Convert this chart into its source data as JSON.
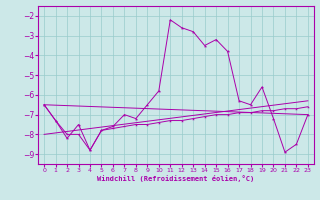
{
  "xlabel": "Windchill (Refroidissement éolien,°C)",
  "bg_color": "#cce8e8",
  "grid_color": "#99cccc",
  "line_color": "#aa00aa",
  "xlim": [
    -0.5,
    23.5
  ],
  "ylim": [
    -9.5,
    -1.5
  ],
  "yticks": [
    -9,
    -8,
    -7,
    -6,
    -5,
    -4,
    -3,
    -2
  ],
  "xticks": [
    0,
    1,
    2,
    3,
    4,
    5,
    6,
    7,
    8,
    9,
    10,
    11,
    12,
    13,
    14,
    15,
    16,
    17,
    18,
    19,
    20,
    21,
    22,
    23
  ],
  "series": [
    {
      "x": [
        0,
        1,
        2,
        3,
        4,
        5,
        6,
        7,
        8,
        9,
        10,
        11,
        12,
        13,
        14,
        15,
        16,
        17,
        18,
        19,
        20,
        21,
        22,
        23
      ],
      "y": [
        -6.5,
        -7.3,
        -8.2,
        -7.5,
        -8.8,
        -7.8,
        -7.6,
        -7.0,
        -7.2,
        -6.5,
        -5.8,
        -2.2,
        -2.6,
        -2.8,
        -3.5,
        -3.2,
        -3.8,
        -6.3,
        -6.5,
        -5.6,
        -7.2,
        -8.9,
        -8.5,
        -7.0
      ]
    },
    {
      "x": [
        0,
        23
      ],
      "y": [
        -6.5,
        -7.0
      ]
    },
    {
      "x": [
        0,
        23
      ],
      "y": [
        -8.0,
        -6.3
      ]
    },
    {
      "x": [
        0,
        1,
        2,
        3,
        4,
        5,
        6,
        7,
        8,
        9,
        10,
        11,
        12,
        13,
        14,
        15,
        16,
        17,
        18,
        19,
        20,
        21,
        22,
        23
      ],
      "y": [
        -6.5,
        -7.3,
        -8.0,
        -8.0,
        -8.8,
        -7.8,
        -7.7,
        -7.6,
        -7.5,
        -7.5,
        -7.4,
        -7.3,
        -7.3,
        -7.2,
        -7.1,
        -7.0,
        -7.0,
        -6.9,
        -6.9,
        -6.8,
        -6.8,
        -6.7,
        -6.7,
        -6.6
      ]
    }
  ]
}
